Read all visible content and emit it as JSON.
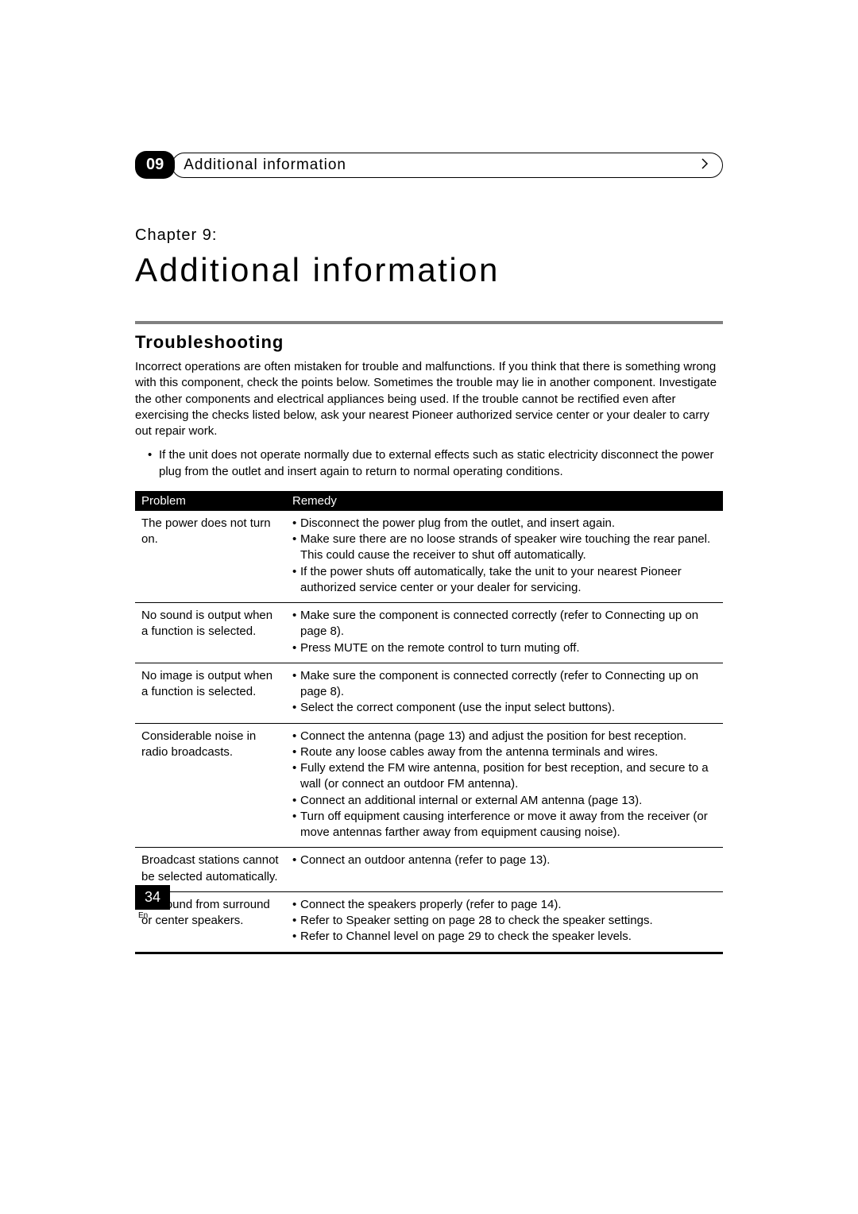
{
  "header": {
    "chapter_number": "09",
    "header_text": "Additional information"
  },
  "chapter": {
    "label": "Chapter 9:",
    "title": "Additional information"
  },
  "section": {
    "title": "Troubleshooting",
    "intro": "Incorrect operations are often mistaken for trouble and malfunctions. If you think that there is something wrong with this component, check the points below. Sometimes the trouble may lie in another component. Investigate the other components and electrical appliances being used. If the trouble cannot be rectified even after exercising the checks listed below, ask your nearest Pioneer authorized service center or your dealer to carry out repair work.",
    "note": "If the unit does not operate normally due to external effects such as static electricity disconnect the power plug from the outlet and insert again to return to normal operating conditions."
  },
  "table": {
    "col_problem": "Problem",
    "col_remedy": "Remedy",
    "rows": [
      {
        "problem": "The power does not turn on.",
        "remedies": [
          "Disconnect the power plug from the outlet, and insert again.",
          "Make sure there are no loose strands of speaker wire touching the rear panel. This could cause the receiver to shut off automatically.",
          "If the power shuts off automatically, take the unit to your nearest Pioneer authorized service center or your dealer for servicing."
        ]
      },
      {
        "problem": "No sound is output when a function is selected.",
        "remedies": [
          "Make sure the component is connected correctly (refer to Connecting up on page 8).",
          "Press MUTE on the remote control to turn muting off."
        ]
      },
      {
        "problem": "No image is output when a function is selected.",
        "remedies": [
          "Make sure the component is connected correctly (refer to Connecting up on page 8).",
          "Select the correct component (use the input select buttons)."
        ]
      },
      {
        "problem": "Considerable noise in radio broadcasts.",
        "remedies": [
          "Connect the antenna (page 13) and adjust the position for best reception.",
          "Route any loose cables away from the antenna terminals and wires.",
          "Fully extend the FM wire antenna, position for best reception, and secure to a wall (or connect an outdoor FM antenna).",
          "Connect an additional internal or external AM antenna (page 13).",
          "Turn off equipment causing interference or move it away from the receiver (or move antennas farther away from equipment causing noise)."
        ]
      },
      {
        "problem": "Broadcast stations cannot be selected automatically.",
        "remedies": [
          "Connect an outdoor antenna (refer to page 13)."
        ]
      },
      {
        "problem": "No sound from surround or center speakers.",
        "remedies": [
          "Connect the speakers properly (refer to page 14).",
          "Refer to Speaker setting on page 28 to check the speaker settings.",
          "Refer to Channel level on page 29 to check the speaker levels."
        ]
      }
    ]
  },
  "footer": {
    "page_number": "34",
    "lang": "En"
  }
}
